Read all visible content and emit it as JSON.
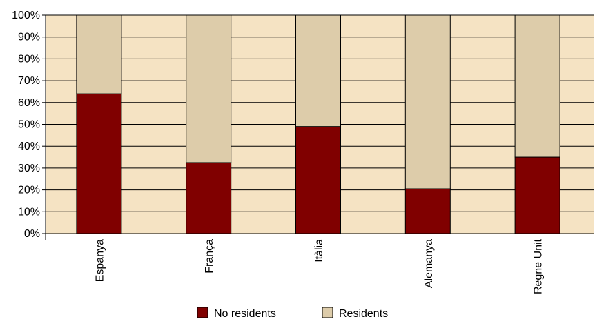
{
  "chart_data": {
    "type": "bar",
    "stacked": true,
    "percent": true,
    "categories": [
      "Espanya",
      "França",
      "Itàlia",
      "Alemanya",
      "Regne Unit"
    ],
    "series": [
      {
        "name": "No residents",
        "values": [
          64,
          32.5,
          49,
          20.5,
          35
        ],
        "color": "#800000"
      },
      {
        "name": "Residents",
        "values": [
          36,
          67.5,
          51,
          79.5,
          65
        ],
        "color": "#DDCCAA"
      }
    ],
    "ylim": [
      0,
      100
    ],
    "yticks": [
      "0%",
      "10%",
      "20%",
      "30%",
      "40%",
      "50%",
      "60%",
      "70%",
      "80%",
      "90%",
      "100%"
    ],
    "grid": true,
    "plot_background": "#F5E3C3",
    "legend_position": "bottom",
    "title": "",
    "xlabel": "",
    "ylabel": ""
  }
}
